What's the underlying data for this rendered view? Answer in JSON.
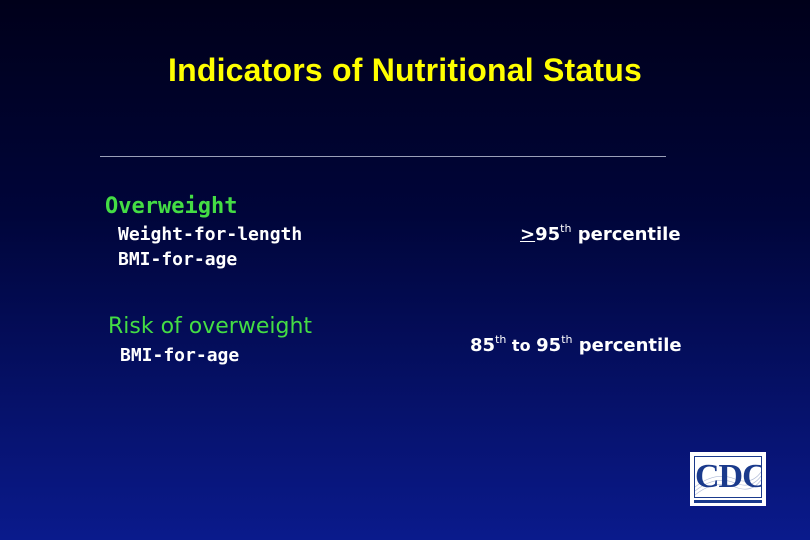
{
  "slide": {
    "title": "Indicators of Nutritional Status",
    "rows": [
      {
        "heading": "Overweight",
        "subitems": [
          "Weight-for-length",
          "BMI-for-age"
        ],
        "criterion": {
          "prefix": ">",
          "value1": "95",
          "sup1": "th",
          "text": " percentile"
        }
      },
      {
        "heading": "Risk of overweight",
        "subitems": [
          "BMI-for-age"
        ],
        "criterion": {
          "value1": "85",
          "sup1": "th",
          "middle": " to ",
          "value2": "95",
          "sup2": "th",
          "text": " percentile"
        }
      }
    ],
    "logo": {
      "text": "CDC",
      "icon": "cdc-logo"
    },
    "colors": {
      "title": "#ffff00",
      "heading": "#44dd44",
      "body": "#ffffff",
      "background_top": "#00001a",
      "background_bottom": "#0a1a8c"
    }
  }
}
